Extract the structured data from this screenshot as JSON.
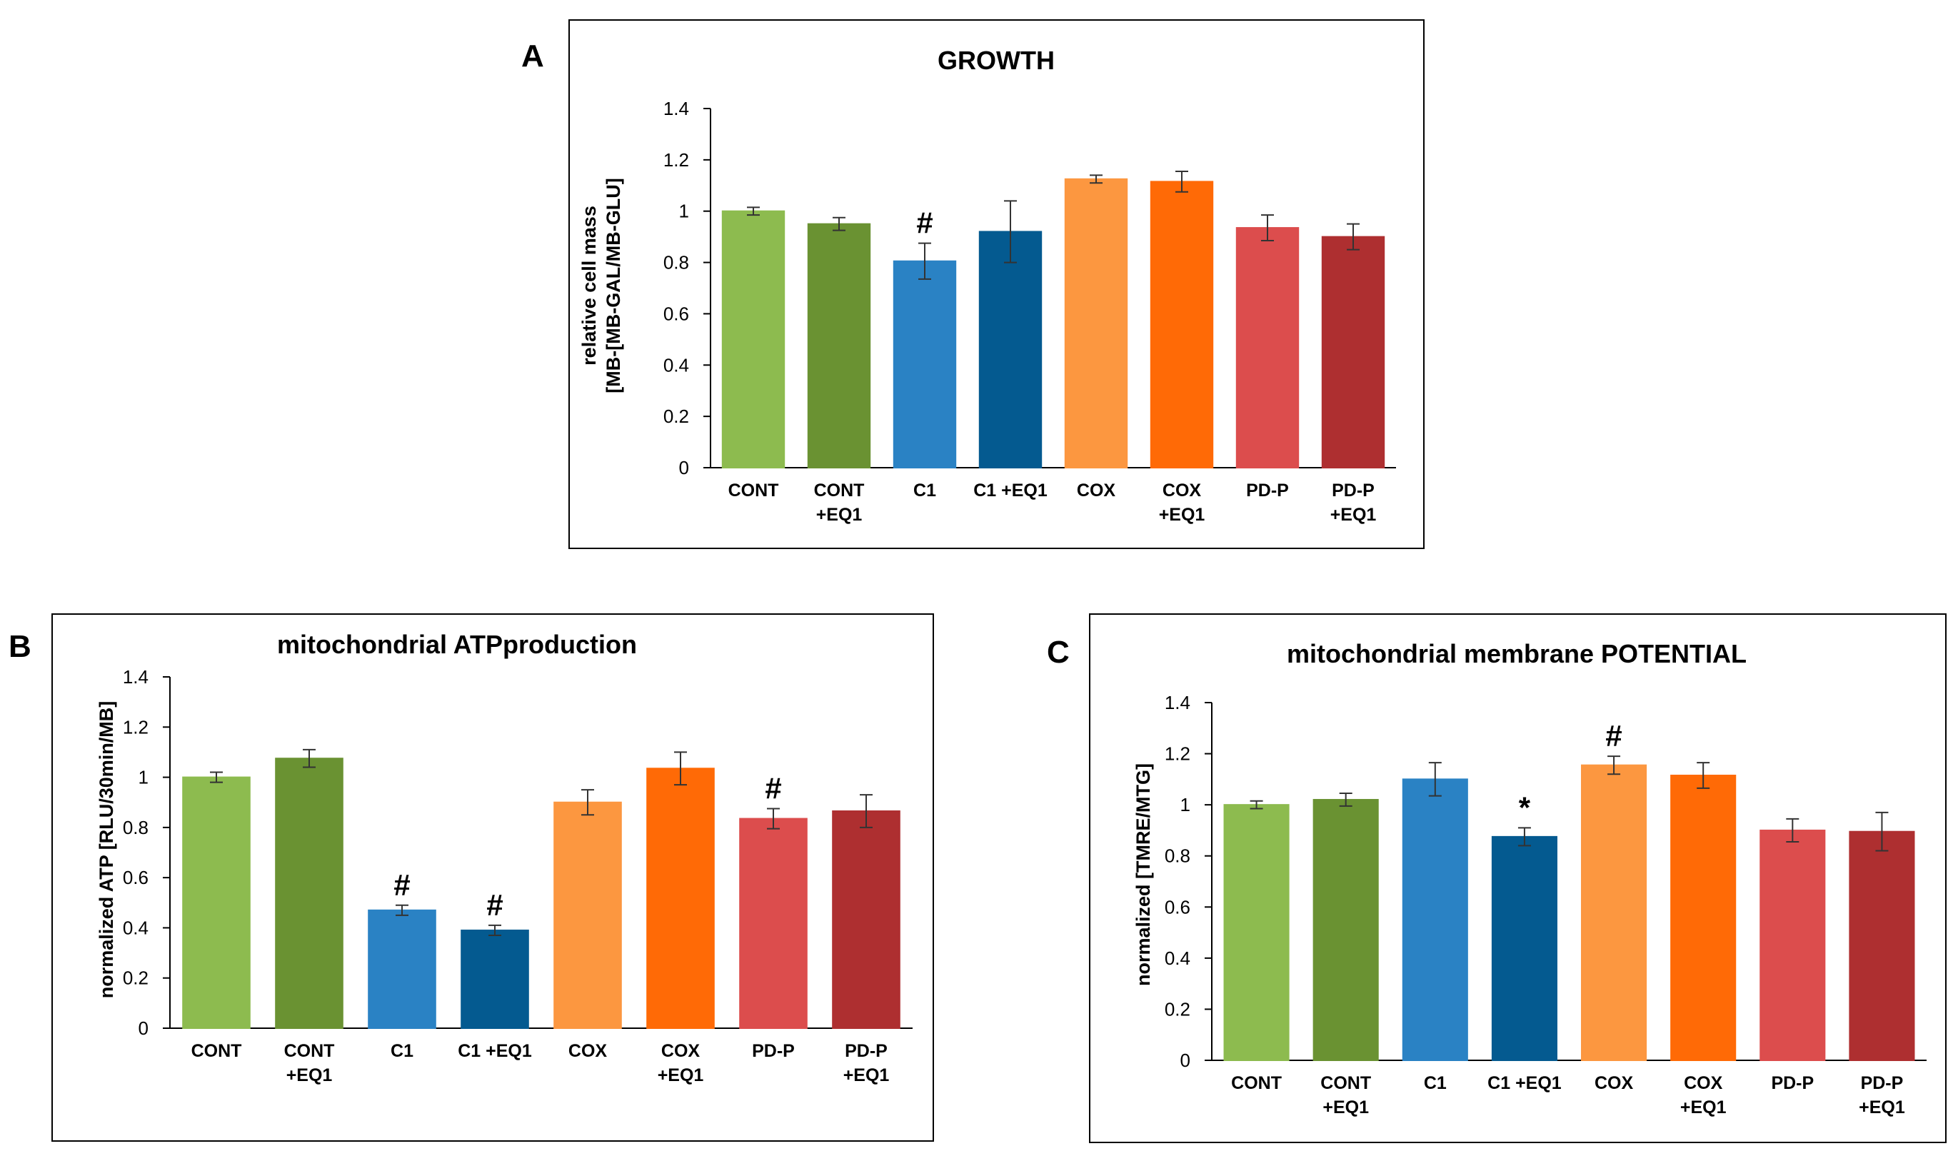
{
  "colors": {
    "cont": "#8dbb4f",
    "cont_eq1": "#6a9232",
    "c1": "#2a82c4",
    "c1_eq1": "#045a90",
    "cox": "#fc9740",
    "cox_eq1": "#ff6a06",
    "pdp": "#dc4d4d",
    "pdp_eq1": "#ae2f30",
    "axis": "#000000",
    "error_bar": "#333333",
    "frame": "#000000"
  },
  "chart_data": [
    {
      "panel_label": "A",
      "type": "bar",
      "title": "GROWTH",
      "ylabel_lines": [
        "relative cell mass",
        "[MB-[MB-GAL/MB-GLU]"
      ],
      "ylim": [
        0,
        1.4
      ],
      "yticks": [
        "0",
        "0.2",
        "0.4",
        "0.6",
        "0.8",
        "1",
        "1.2",
        "1.4"
      ],
      "grid": false,
      "categories": [
        [
          "CONT"
        ],
        [
          "CONT",
          "+EQ1"
        ],
        [
          "C1"
        ],
        [
          "C1  +EQ1"
        ],
        [
          "COX"
        ],
        [
          "COX",
          "+EQ1"
        ],
        [
          "PD-P"
        ],
        [
          "PD-P",
          "+EQ1"
        ]
      ],
      "values": [
        1.0,
        0.95,
        0.805,
        0.92,
        1.125,
        1.115,
        0.935,
        0.9
      ],
      "errors": [
        0.015,
        0.025,
        0.07,
        0.12,
        0.015,
        0.04,
        0.05,
        0.05
      ],
      "markers": [
        "",
        "",
        "#",
        "",
        "",
        "",
        "",
        ""
      ]
    },
    {
      "panel_label": "B",
      "type": "bar",
      "title": "mitochondrial ATPproduction",
      "ylabel_lines": [
        "normalized ATP [RLU/30min/MB]"
      ],
      "ylim": [
        0,
        1.4
      ],
      "yticks": [
        "0",
        "0.2",
        "0.4",
        "0.6",
        "0.8",
        "1",
        "1.2",
        "1.4"
      ],
      "grid": false,
      "categories": [
        [
          "CONT"
        ],
        [
          "CONT",
          "+EQ1"
        ],
        [
          "C1"
        ],
        [
          "C1  +EQ1"
        ],
        [
          "COX"
        ],
        [
          "COX",
          "+EQ1"
        ],
        [
          "PD-P"
        ],
        [
          "PD-P",
          "+EQ1"
        ]
      ],
      "values": [
        1.0,
        1.075,
        0.47,
        0.39,
        0.9,
        1.035,
        0.835,
        0.865
      ],
      "errors": [
        0.02,
        0.035,
        0.02,
        0.02,
        0.05,
        0.065,
        0.04,
        0.065
      ],
      "markers": [
        "",
        "",
        "#",
        "#",
        "",
        "",
        "#",
        ""
      ]
    },
    {
      "panel_label": "C",
      "type": "bar",
      "title": "mitochondrial membrane POTENTIAL",
      "ylabel_lines": [
        "normalized  [TMRE/MTG]"
      ],
      "ylim": [
        0,
        1.4
      ],
      "yticks": [
        "0",
        "0.2",
        "0.4",
        "0.6",
        "0.8",
        "1",
        "1.2",
        "1.4"
      ],
      "grid": false,
      "categories": [
        [
          "CONT"
        ],
        [
          "CONT",
          "+EQ1"
        ],
        [
          "C1"
        ],
        [
          "C1  +EQ1"
        ],
        [
          "COX"
        ],
        [
          "COX",
          "+EQ1"
        ],
        [
          "PD-P"
        ],
        [
          "PD-P",
          "+EQ1"
        ]
      ],
      "values": [
        1.0,
        1.02,
        1.1,
        0.875,
        1.155,
        1.115,
        0.9,
        0.895
      ],
      "errors": [
        0.015,
        0.025,
        0.065,
        0.035,
        0.035,
        0.05,
        0.045,
        0.075
      ],
      "markers": [
        "",
        "",
        "",
        "*",
        "#",
        "",
        "",
        ""
      ]
    }
  ]
}
